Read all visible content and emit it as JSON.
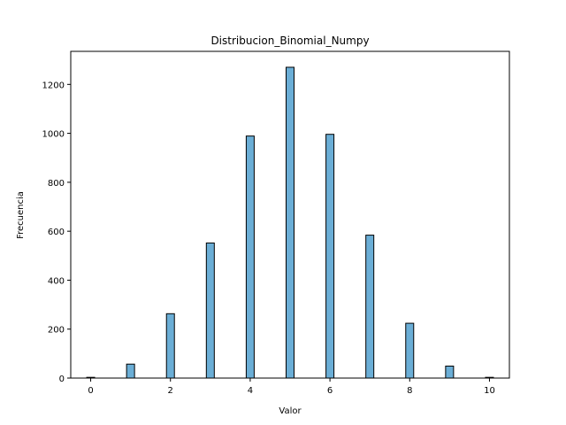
{
  "chart_data": {
    "type": "bar",
    "title": "Distribucion_Binomial_Numpy",
    "xlabel": "Valor",
    "ylabel": "Frecuencia",
    "x": [
      0,
      1,
      2,
      3,
      4,
      5,
      6,
      7,
      8,
      9,
      10
    ],
    "values": [
      3,
      57,
      263,
      552,
      989,
      1270,
      996,
      584,
      224,
      49,
      3
    ],
    "xlim": [
      -0.5,
      10.5
    ],
    "ylim": [
      0,
      1335
    ],
    "xticks": [
      0,
      2,
      4,
      6,
      8,
      10
    ],
    "yticks": [
      0,
      200,
      400,
      600,
      800,
      1000,
      1200
    ],
    "grid": false,
    "bar_color": "#6baed6",
    "edge_color": "#000000"
  }
}
